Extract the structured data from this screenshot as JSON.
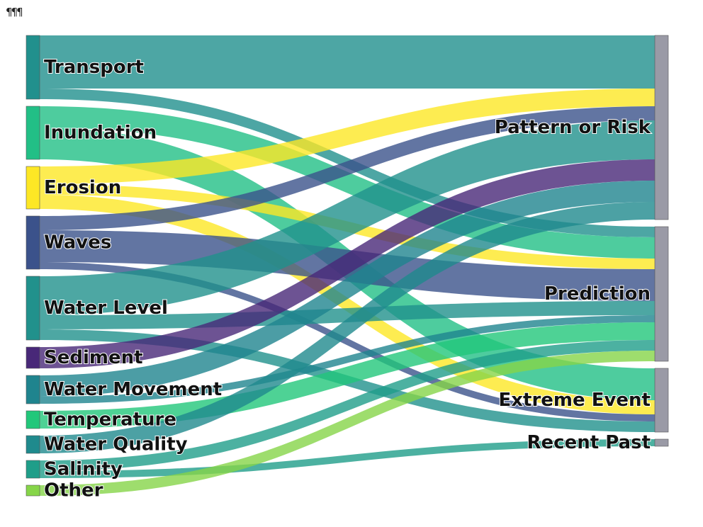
{
  "corner_mark": "¶¶¶",
  "chart_data": {
    "type": "sankey",
    "sources": [
      {
        "name": "Transport",
        "color": "#21908d"
      },
      {
        "name": "Inundation",
        "color": "#22bf86"
      },
      {
        "name": "Erosion",
        "color": "#fde725"
      },
      {
        "name": "Waves",
        "color": "#3b528b"
      },
      {
        "name": "Water Level",
        "color": "#21918c"
      },
      {
        "name": "Sediment",
        "color": "#482878"
      },
      {
        "name": "Water Movement",
        "color": "#1f848e"
      },
      {
        "name": "Temperature",
        "color": "#22c77a"
      },
      {
        "name": "Water Quality",
        "color": "#1f8a8d"
      },
      {
        "name": "Salinity",
        "color": "#1f9e89"
      },
      {
        "name": "Other",
        "color": "#86d549"
      }
    ],
    "targets": [
      {
        "name": "Pattern or Risk",
        "color": "#9a9aa6"
      },
      {
        "name": "Prediction",
        "color": "#9a9aa6"
      },
      {
        "name": "Extreme Event",
        "color": "#9a9aa6"
      },
      {
        "name": "Recent Past",
        "color": "#9a9aa6"
      }
    ],
    "links": [
      {
        "source": "Transport",
        "target": "Pattern or Risk",
        "value": 75
      },
      {
        "source": "Transport",
        "target": "Prediction",
        "value": 15
      },
      {
        "source": "Inundation",
        "target": "Prediction",
        "value": 30
      },
      {
        "source": "Inundation",
        "target": "Extreme Event",
        "value": 45
      },
      {
        "source": "Erosion",
        "target": "Pattern or Risk",
        "value": 25
      },
      {
        "source": "Erosion",
        "target": "Prediction",
        "value": 15
      },
      {
        "source": "Erosion",
        "target": "Extreme Event",
        "value": 20
      },
      {
        "source": "Waves",
        "target": "Pattern or Risk",
        "value": 20
      },
      {
        "source": "Waves",
        "target": "Prediction",
        "value": 45
      },
      {
        "source": "Waves",
        "target": "Extreme Event",
        "value": 10
      },
      {
        "source": "Water Level",
        "target": "Pattern or Risk",
        "value": 55
      },
      {
        "source": "Water Level",
        "target": "Prediction",
        "value": 20
      },
      {
        "source": "Water Level",
        "target": "Extreme Event",
        "value": 15
      },
      {
        "source": "Sediment",
        "target": "Pattern or Risk",
        "value": 30
      },
      {
        "source": "Water Movement",
        "target": "Pattern or Risk",
        "value": 30
      },
      {
        "source": "Water Movement",
        "target": "Prediction",
        "value": 10
      },
      {
        "source": "Temperature",
        "target": "Prediction",
        "value": 25
      },
      {
        "source": "Water Quality",
        "target": "Pattern or Risk",
        "value": 25
      },
      {
        "source": "Salinity",
        "target": "Prediction",
        "value": 15
      },
      {
        "source": "Salinity",
        "target": "Recent Past",
        "value": 10
      },
      {
        "source": "Other",
        "target": "Prediction",
        "value": 15
      }
    ]
  }
}
